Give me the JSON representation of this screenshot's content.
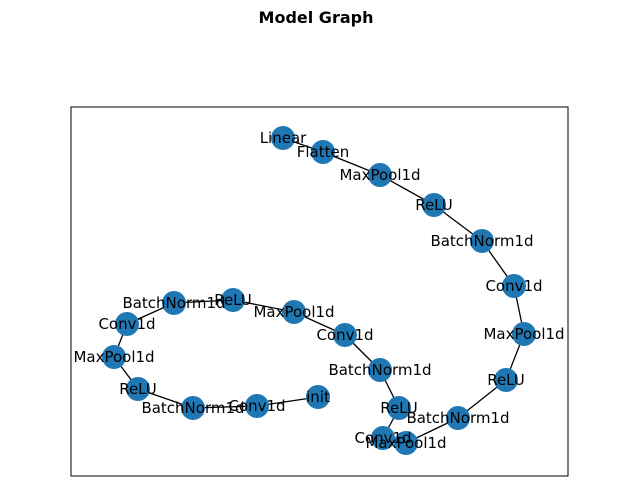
{
  "title": "Model Graph",
  "colors": {
    "node": "#1f77b4",
    "edge": "#000000",
    "frame": "#000000",
    "label": "#000000"
  },
  "nodes": [
    {
      "id": "linear",
      "label": "Linear"
    },
    {
      "id": "flatten",
      "label": "Flatten"
    },
    {
      "id": "maxpool_a",
      "label": "MaxPool1d"
    },
    {
      "id": "relu_a",
      "label": "ReLU"
    },
    {
      "id": "batchnorm_a",
      "label": "BatchNorm1d"
    },
    {
      "id": "conv_a",
      "label": "Conv1d"
    },
    {
      "id": "maxpool_b",
      "label": "MaxPool1d"
    },
    {
      "id": "relu_b",
      "label": "ReLU"
    },
    {
      "id": "batchnorm_b",
      "label": "BatchNorm1d"
    },
    {
      "id": "maxpool_c",
      "label": "MaxPool1d"
    },
    {
      "id": "conv_b",
      "label": "Conv1d"
    },
    {
      "id": "relu_c",
      "label": "ReLU"
    },
    {
      "id": "batchnorm_c",
      "label": "BatchNorm1d"
    },
    {
      "id": "conv_c",
      "label": "Conv1d"
    },
    {
      "id": "maxpool_d",
      "label": "MaxPool1d"
    },
    {
      "id": "relu_d",
      "label": "ReLU"
    },
    {
      "id": "batchnorm_d",
      "label": "BatchNorm1d"
    },
    {
      "id": "conv_d",
      "label": "Conv1d"
    },
    {
      "id": "maxpool_e",
      "label": "MaxPool1d"
    },
    {
      "id": "relu_e",
      "label": "ReLU"
    },
    {
      "id": "batchnorm_e",
      "label": "BatchNorm1d"
    },
    {
      "id": "conv_e",
      "label": "Conv1d"
    },
    {
      "id": "init",
      "label": "init"
    }
  ],
  "edges": [
    [
      "linear",
      "flatten"
    ],
    [
      "flatten",
      "maxpool_a"
    ],
    [
      "maxpool_a",
      "relu_a"
    ],
    [
      "relu_a",
      "batchnorm_a"
    ],
    [
      "batchnorm_a",
      "conv_a"
    ],
    [
      "conv_a",
      "maxpool_b"
    ],
    [
      "maxpool_b",
      "relu_b"
    ],
    [
      "relu_b",
      "batchnorm_b"
    ],
    [
      "batchnorm_b",
      "maxpool_c"
    ],
    [
      "maxpool_c",
      "conv_b"
    ],
    [
      "conv_b",
      "relu_c"
    ],
    [
      "relu_c",
      "batchnorm_c"
    ],
    [
      "batchnorm_c",
      "conv_c"
    ],
    [
      "conv_c",
      "maxpool_d"
    ],
    [
      "maxpool_d",
      "relu_d"
    ],
    [
      "relu_d",
      "batchnorm_d"
    ],
    [
      "batchnorm_d",
      "conv_d"
    ],
    [
      "conv_d",
      "maxpool_e"
    ],
    [
      "maxpool_e",
      "relu_e"
    ],
    [
      "relu_e",
      "batchnorm_e"
    ],
    [
      "batchnorm_e",
      "conv_e"
    ],
    [
      "conv_e",
      "init"
    ]
  ]
}
